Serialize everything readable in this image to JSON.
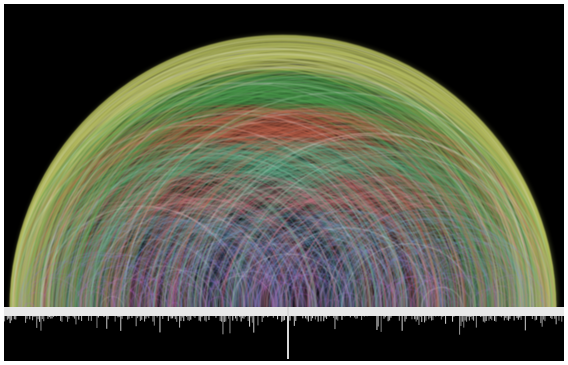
{
  "figure": {
    "kind": "arc-diagram",
    "background_color": "#000000",
    "frame_color": "#ffffff",
    "baseline_color": "#e8e8e8",
    "bar_color": "#d8d8d8",
    "arc_color_bands": [
      {
        "band": "innermost",
        "color": "#c060e0"
      },
      {
        "band": "inner",
        "color": "#8a7ad8"
      },
      {
        "band": "middle-low",
        "color": "#6f9fd6"
      },
      {
        "band": "middle",
        "color": "#d47a8a"
      },
      {
        "band": "middle-high",
        "color": "#5fb08a"
      },
      {
        "band": "upper",
        "color": "#c86850"
      },
      {
        "band": "outer",
        "color": "#4fa050"
      },
      {
        "band": "outermost",
        "color": "#b8c060"
      }
    ],
    "has_text": false
  }
}
